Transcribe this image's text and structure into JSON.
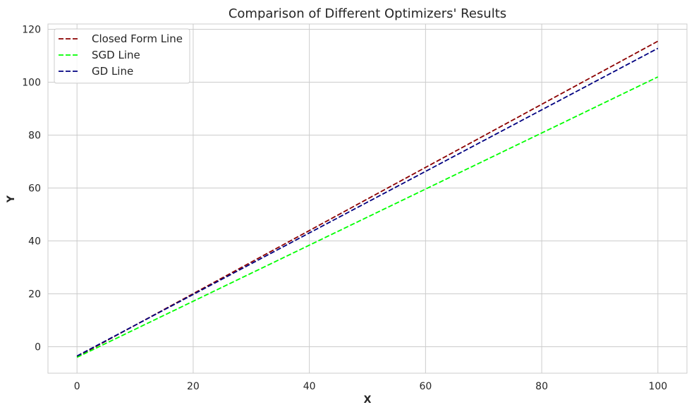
{
  "chart_data": {
    "type": "line",
    "title": "Comparison of Different Optimizers' Results",
    "xlabel": "X",
    "ylabel": "Y",
    "xlim": [
      -5,
      105
    ],
    "ylim": [
      -10,
      122
    ],
    "xticks": [
      0,
      20,
      40,
      60,
      80,
      100
    ],
    "yticks": [
      0,
      20,
      40,
      60,
      80,
      100,
      120
    ],
    "grid": true,
    "legend_position": "top-left",
    "series": [
      {
        "name": "Closed Form Line",
        "color": "#8b0000",
        "style": "dashed",
        "x": [
          0,
          100
        ],
        "y": [
          -3.8,
          115.5
        ]
      },
      {
        "name": "SGD Line",
        "color": "#00ff00",
        "style": "dashed",
        "x": [
          0,
          100
        ],
        "y": [
          -4.0,
          102.0
        ]
      },
      {
        "name": "GD Line",
        "color": "#000080",
        "style": "dashed",
        "x": [
          0,
          100
        ],
        "y": [
          -3.5,
          112.8
        ]
      }
    ]
  }
}
